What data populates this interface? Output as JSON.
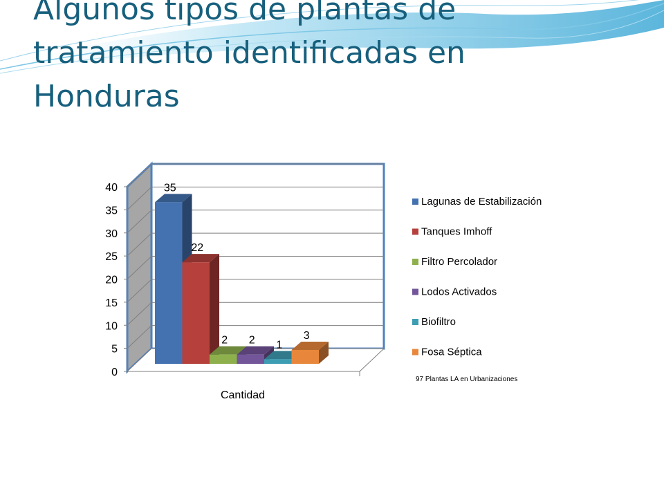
{
  "slide": {
    "title_lines": [
      "Algunos tipos de plantas de",
      "tratamiento identificadas en",
      "Honduras"
    ]
  },
  "colors": {
    "title": "#17607d",
    "wave": "#4fb3d9",
    "wall_gray": "#a6a6a6",
    "frame_blue": "#4f81bd"
  },
  "chart_data": {
    "type": "bar",
    "title": "",
    "xlabel": "Cantidad",
    "ylabel": "",
    "ylim": [
      0,
      40
    ],
    "yticks": [
      0,
      5,
      10,
      15,
      20,
      25,
      30,
      35,
      40
    ],
    "categories": [
      "Cantidad"
    ],
    "series": [
      {
        "name": "Lagunas de Estabilización",
        "values": [
          35
        ],
        "color": "#4472b0"
      },
      {
        "name": "Tanques Imhoff",
        "values": [
          22
        ],
        "color": "#b5403c"
      },
      {
        "name": "Filtro Percolador",
        "values": [
          2
        ],
        "color": "#8db04c"
      },
      {
        "name": "Lodos Activados",
        "values": [
          2
        ],
        "color": "#73559a"
      },
      {
        "name": "Biofiltro",
        "values": [
          1
        ],
        "color": "#3d9db3"
      },
      {
        "name": "Fosa Séptica",
        "values": [
          3
        ],
        "color": "#e8873c"
      }
    ],
    "legend_position": "right",
    "grid": true,
    "note": "97 Plantas LA en Urbanizaciones"
  }
}
